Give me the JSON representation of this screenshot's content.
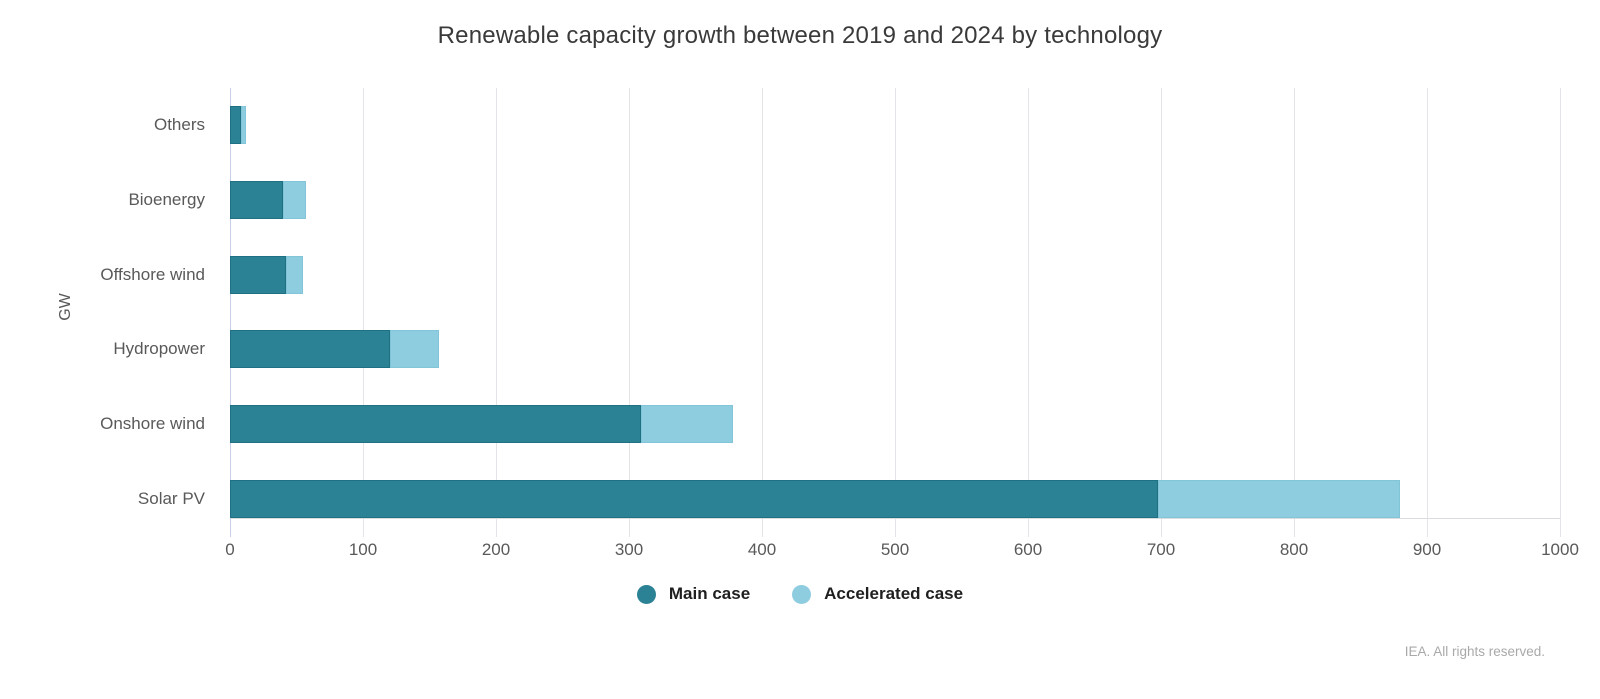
{
  "title": "Renewable capacity growth between 2019 and 2024 by technology",
  "footer": "IEA. All rights reserved.",
  "chart_data": {
    "type": "bar",
    "orientation": "horizontal",
    "stacked": true,
    "title": "Renewable capacity growth between 2019 and 2024 by technology",
    "xlabel": "",
    "ylabel": "GW",
    "categories": [
      "Others",
      "Bioenergy",
      "Offshore wind",
      "Hydropower",
      "Onshore wind",
      "Solar PV"
    ],
    "series": [
      {
        "name": "Main case",
        "color": "#2a8294",
        "values": [
          8,
          40,
          42,
          120,
          309,
          698
        ]
      },
      {
        "name": "Accelerated case",
        "color": "#8ecde0",
        "values": [
          4,
          17,
          13,
          37,
          69,
          182
        ],
        "note": "values are increments stacked on top of the Main case"
      }
    ],
    "xlim": [
      0,
      1000
    ],
    "xticks": [
      0,
      100,
      200,
      300,
      400,
      500,
      600,
      700,
      800,
      900,
      1000
    ],
    "grid": true,
    "legend_position": "bottom"
  },
  "colors": {
    "main_case": "#2a8294",
    "accelerated_case": "#8ecde0",
    "gridline": "#e2e4e8",
    "zero_axis": "#c9cfe7",
    "text_gray": "#595959",
    "title_text": "#3a3a3a",
    "footer_text": "#a9a9a9"
  }
}
